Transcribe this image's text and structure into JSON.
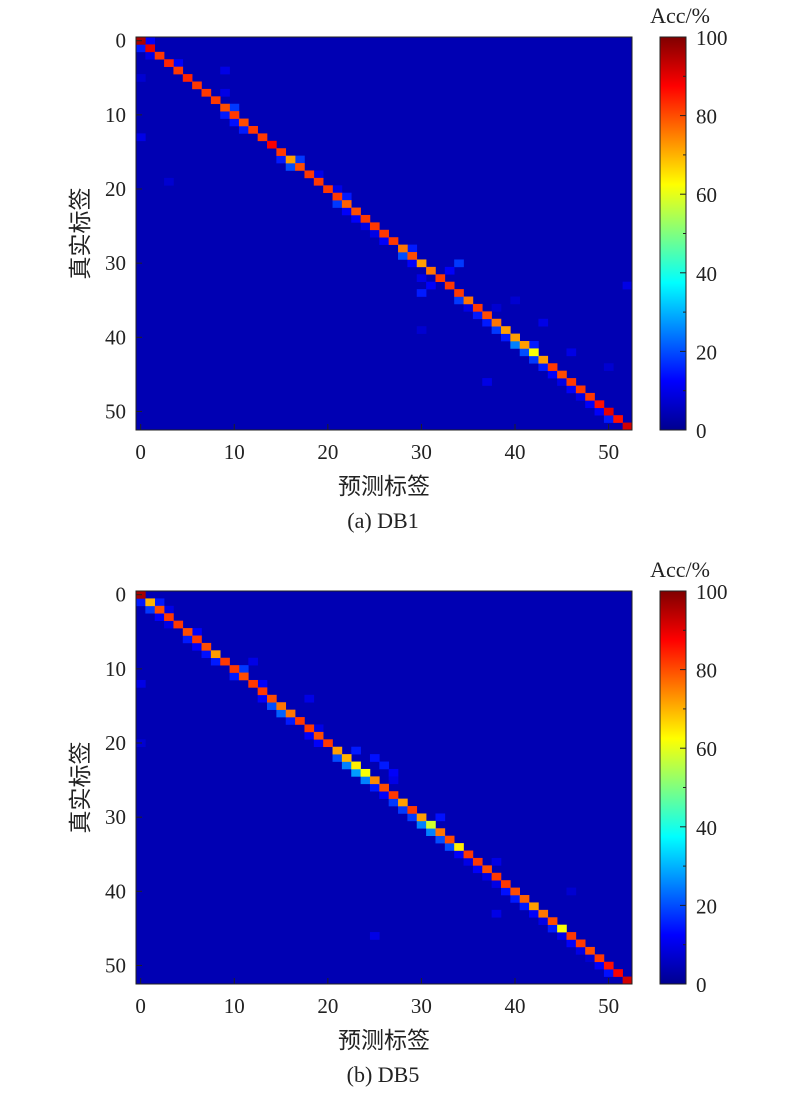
{
  "chart_data": [
    {
      "type": "heatmap",
      "caption": "(a) DB1",
      "xlabel": "预测标签",
      "ylabel": "真实标签",
      "colorbar_label": "Acc/%",
      "n_classes": 53,
      "x_ticks": [
        0,
        10,
        20,
        30,
        40,
        50
      ],
      "y_ticks": [
        0,
        10,
        20,
        30,
        40,
        50
      ],
      "colorbar_ticks": [
        0,
        20,
        40,
        60,
        80,
        100
      ],
      "zlim": [
        0,
        100
      ],
      "colormap": "jet",
      "background_value": 5,
      "diagonal_default": 82,
      "diagonal": {
        "0": 96,
        "1": 90,
        "3": 84,
        "5": 84,
        "9": 80,
        "11": 80,
        "14": 88,
        "16": 72,
        "17": 80,
        "22": 78,
        "23": 80,
        "28": 76,
        "29": 80,
        "30": 72,
        "31": 76,
        "35": 76,
        "37": 80,
        "38": 76,
        "39": 72,
        "40": 72,
        "41": 72,
        "42": 62,
        "43": 72,
        "45": 80,
        "49": 86,
        "50": 90,
        "51": 86,
        "52": 92
      },
      "off_diagonal": [
        [
          1,
          0,
          15
        ],
        [
          0,
          1,
          12
        ],
        [
          2,
          1,
          10
        ],
        [
          3,
          4,
          12
        ],
        [
          4,
          9,
          10
        ],
        [
          5,
          0,
          8
        ],
        [
          7,
          9,
          10
        ],
        [
          9,
          10,
          18
        ],
        [
          10,
          9,
          15
        ],
        [
          10,
          10,
          20
        ],
        [
          11,
          10,
          14
        ],
        [
          12,
          11,
          15
        ],
        [
          13,
          0,
          10
        ],
        [
          16,
          15,
          15
        ],
        [
          17,
          16,
          20
        ],
        [
          16,
          17,
          18
        ],
        [
          18,
          19,
          10
        ],
        [
          19,
          3,
          8
        ],
        [
          20,
          21,
          10
        ],
        [
          21,
          22,
          15
        ],
        [
          22,
          21,
          18
        ],
        [
          23,
          22,
          12
        ],
        [
          24,
          23,
          12
        ],
        [
          25,
          24,
          10
        ],
        [
          26,
          25,
          10
        ],
        [
          27,
          26,
          12
        ],
        [
          28,
          29,
          15
        ],
        [
          29,
          28,
          20
        ],
        [
          30,
          29,
          12
        ],
        [
          30,
          34,
          18
        ],
        [
          31,
          33,
          12
        ],
        [
          32,
          30,
          10
        ],
        [
          33,
          31,
          12
        ],
        [
          34,
          30,
          15
        ],
        [
          35,
          34,
          18
        ],
        [
          36,
          35,
          10
        ],
        [
          37,
          36,
          15
        ],
        [
          38,
          37,
          15
        ],
        [
          39,
          38,
          18
        ],
        [
          40,
          39,
          15
        ],
        [
          41,
          40,
          25
        ],
        [
          41,
          42,
          15
        ],
        [
          42,
          41,
          20
        ],
        [
          43,
          42,
          18
        ],
        [
          44,
          43,
          15
        ],
        [
          45,
          44,
          12
        ],
        [
          46,
          45,
          10
        ],
        [
          47,
          46,
          12
        ],
        [
          48,
          47,
          10
        ],
        [
          49,
          48,
          12
        ],
        [
          50,
          49,
          12
        ],
        [
          51,
          50,
          15
        ],
        [
          46,
          37,
          10
        ],
        [
          44,
          50,
          8
        ],
        [
          42,
          46,
          10
        ],
        [
          36,
          38,
          8
        ],
        [
          38,
          43,
          10
        ],
        [
          33,
          52,
          10
        ],
        [
          35,
          40,
          8
        ],
        [
          39,
          30,
          8
        ]
      ]
    },
    {
      "type": "heatmap",
      "caption": "(b) DB5",
      "xlabel": "预测标签",
      "ylabel": "真实标签",
      "colorbar_label": "Acc/%",
      "n_classes": 53,
      "x_ticks": [
        0,
        10,
        20,
        30,
        40,
        50
      ],
      "y_ticks": [
        0,
        10,
        20,
        30,
        40,
        50
      ],
      "colorbar_ticks": [
        0,
        20,
        40,
        60,
        80,
        100
      ],
      "zlim": [
        0,
        100
      ],
      "colormap": "jet",
      "background_value": 5,
      "diagonal_default": 82,
      "diagonal": {
        "0": 96,
        "1": 70,
        "2": 80,
        "5": 80,
        "7": 80,
        "8": 72,
        "11": 80,
        "14": 80,
        "15": 76,
        "16": 76,
        "19": 80,
        "21": 72,
        "22": 70,
        "23": 64,
        "24": 62,
        "25": 74,
        "26": 80,
        "28": 72,
        "30": 72,
        "31": 58,
        "32": 76,
        "33": 80,
        "34": 64,
        "37": 80,
        "40": 80,
        "41": 78,
        "42": 72,
        "43": 76,
        "44": 80,
        "45": 62,
        "48": 80,
        "50": 86,
        "51": 88,
        "52": 92
      },
      "off_diagonal": [
        [
          1,
          0,
          15
        ],
        [
          2,
          1,
          18
        ],
        [
          1,
          2,
          15
        ],
        [
          3,
          2,
          12
        ],
        [
          2,
          3,
          10
        ],
        [
          4,
          3,
          10
        ],
        [
          5,
          6,
          12
        ],
        [
          6,
          5,
          15
        ],
        [
          7,
          6,
          12
        ],
        [
          8,
          7,
          14
        ],
        [
          9,
          8,
          15
        ],
        [
          10,
          11,
          18
        ],
        [
          11,
          10,
          15
        ],
        [
          9,
          12,
          10
        ],
        [
          12,
          13,
          12
        ],
        [
          14,
          13,
          12
        ],
        [
          15,
          14,
          20
        ],
        [
          16,
          15,
          22
        ],
        [
          17,
          16,
          15
        ],
        [
          14,
          18,
          10
        ],
        [
          18,
          19,
          10
        ],
        [
          19,
          18,
          12
        ],
        [
          20,
          19,
          12
        ],
        [
          22,
          21,
          20
        ],
        [
          21,
          23,
          15
        ],
        [
          23,
          22,
          25
        ],
        [
          24,
          23,
          28
        ],
        [
          25,
          24,
          25
        ],
        [
          22,
          25,
          14
        ],
        [
          23,
          26,
          15
        ],
        [
          24,
          27,
          12
        ],
        [
          26,
          25,
          15
        ],
        [
          25,
          27,
          10
        ],
        [
          27,
          26,
          12
        ],
        [
          28,
          27,
          18
        ],
        [
          29,
          28,
          18
        ],
        [
          30,
          29,
          18
        ],
        [
          31,
          30,
          25
        ],
        [
          30,
          32,
          14
        ],
        [
          32,
          31,
          25
        ],
        [
          33,
          32,
          20
        ],
        [
          34,
          33,
          20
        ],
        [
          35,
          34,
          12
        ],
        [
          36,
          35,
          10
        ],
        [
          37,
          36,
          12
        ],
        [
          38,
          37,
          10
        ],
        [
          39,
          38,
          10
        ],
        [
          40,
          39,
          14
        ],
        [
          41,
          40,
          15
        ],
        [
          42,
          41,
          15
        ],
        [
          43,
          42,
          12
        ],
        [
          44,
          43,
          10
        ],
        [
          45,
          44,
          15
        ],
        [
          46,
          45,
          10
        ],
        [
          47,
          46,
          12
        ],
        [
          48,
          47,
          10
        ],
        [
          49,
          48,
          8
        ],
        [
          50,
          49,
          12
        ],
        [
          51,
          50,
          14
        ],
        [
          46,
          25,
          10
        ],
        [
          43,
          38,
          10
        ],
        [
          40,
          46,
          8
        ],
        [
          36,
          38,
          10
        ],
        [
          12,
          0,
          10
        ],
        [
          20,
          0,
          8
        ]
      ]
    }
  ]
}
